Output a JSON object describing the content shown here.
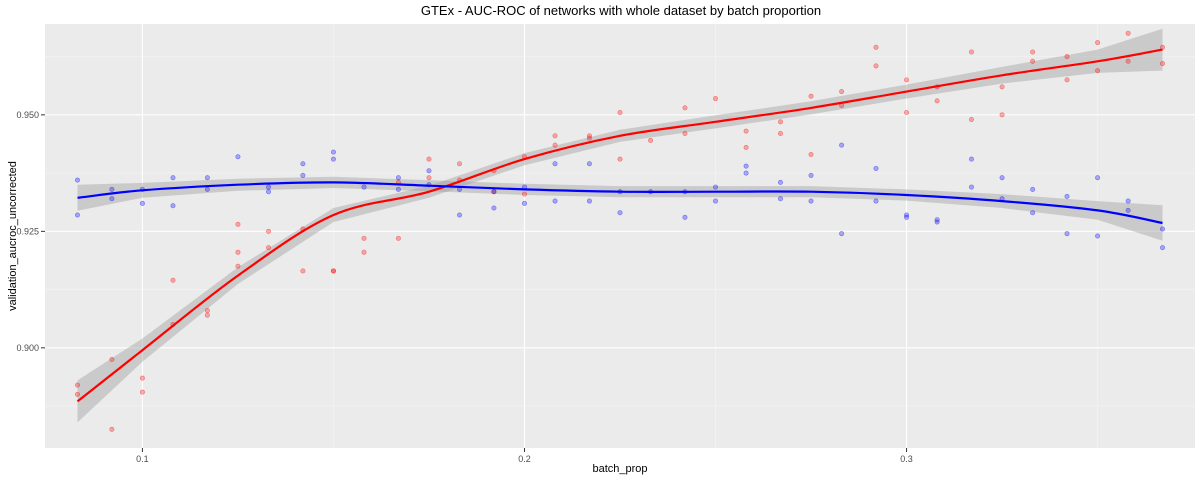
{
  "chart_data": {
    "type": "scatter",
    "title": "GTEx - AUC-ROC of networks with whole dataset by batch proportion",
    "xlabel": "batch_prop",
    "ylabel": "validation_aucroc_uncorrected",
    "xlim": [
      0.0745,
      0.3755
    ],
    "ylim": [
      0.8785,
      0.9695
    ],
    "x_ticks": [
      0.1,
      0.2,
      0.3
    ],
    "x_tick_labels": [
      "0.1",
      "0.2",
      "0.3"
    ],
    "y_ticks": [
      0.9,
      0.925,
      0.95
    ],
    "y_tick_labels": [
      "0.900",
      "0.925",
      "0.950"
    ],
    "grid": true,
    "legend": "none",
    "background_color": "#ebebeb",
    "series": [
      {
        "color": "#ff0000",
        "points": [
          [
            0.083,
            0.892
          ],
          [
            0.083,
            0.89
          ],
          [
            0.092,
            0.8975
          ],
          [
            0.092,
            0.8825
          ],
          [
            0.1,
            0.8935
          ],
          [
            0.1,
            0.8905
          ],
          [
            0.108,
            0.9145
          ],
          [
            0.108,
            0.905
          ],
          [
            0.117,
            0.907
          ],
          [
            0.117,
            0.908
          ],
          [
            0.125,
            0.9265
          ],
          [
            0.125,
            0.9205
          ],
          [
            0.125,
            0.9175
          ],
          [
            0.133,
            0.925
          ],
          [
            0.133,
            0.9215
          ],
          [
            0.142,
            0.9255
          ],
          [
            0.142,
            0.9165
          ],
          [
            0.15,
            0.9165
          ],
          [
            0.15,
            0.9165
          ],
          [
            0.158,
            0.9235
          ],
          [
            0.158,
            0.9205
          ],
          [
            0.167,
            0.9235
          ],
          [
            0.167,
            0.9355
          ],
          [
            0.175,
            0.9405
          ],
          [
            0.175,
            0.9365
          ],
          [
            0.183,
            0.9395
          ],
          [
            0.183,
            0.936
          ],
          [
            0.192,
            0.938
          ],
          [
            0.192,
            0.9335
          ],
          [
            0.2,
            0.941
          ],
          [
            0.2,
            0.933
          ],
          [
            0.208,
            0.9455
          ],
          [
            0.208,
            0.9435
          ],
          [
            0.217,
            0.9455
          ],
          [
            0.217,
            0.945
          ],
          [
            0.225,
            0.9505
          ],
          [
            0.225,
            0.9405
          ],
          [
            0.233,
            0.9445
          ],
          [
            0.242,
            0.9515
          ],
          [
            0.242,
            0.946
          ],
          [
            0.25,
            0.9535
          ],
          [
            0.258,
            0.9465
          ],
          [
            0.258,
            0.943
          ],
          [
            0.267,
            0.9485
          ],
          [
            0.267,
            0.946
          ],
          [
            0.275,
            0.954
          ],
          [
            0.275,
            0.9415
          ],
          [
            0.283,
            0.955
          ],
          [
            0.283,
            0.952
          ],
          [
            0.292,
            0.9645
          ],
          [
            0.292,
            0.9605
          ],
          [
            0.3,
            0.9575
          ],
          [
            0.3,
            0.9505
          ],
          [
            0.308,
            0.956
          ],
          [
            0.308,
            0.953
          ],
          [
            0.317,
            0.9635
          ],
          [
            0.317,
            0.949
          ],
          [
            0.325,
            0.956
          ],
          [
            0.325,
            0.95
          ],
          [
            0.333,
            0.9635
          ],
          [
            0.333,
            0.9615
          ],
          [
            0.342,
            0.9625
          ],
          [
            0.342,
            0.9575
          ],
          [
            0.35,
            0.9655
          ],
          [
            0.35,
            0.9595
          ],
          [
            0.358,
            0.9675
          ],
          [
            0.358,
            0.9615
          ],
          [
            0.367,
            0.9645
          ],
          [
            0.367,
            0.961
          ]
        ]
      },
      {
        "color": "#0000ff",
        "points": [
          [
            0.083,
            0.936
          ],
          [
            0.083,
            0.9285
          ],
          [
            0.092,
            0.934
          ],
          [
            0.092,
            0.932
          ],
          [
            0.1,
            0.934
          ],
          [
            0.1,
            0.931
          ],
          [
            0.108,
            0.9365
          ],
          [
            0.108,
            0.9305
          ],
          [
            0.117,
            0.9365
          ],
          [
            0.117,
            0.934
          ],
          [
            0.125,
            0.941
          ],
          [
            0.133,
            0.9345
          ],
          [
            0.133,
            0.9335
          ],
          [
            0.142,
            0.9395
          ],
          [
            0.142,
            0.937
          ],
          [
            0.15,
            0.942
          ],
          [
            0.15,
            0.9405
          ],
          [
            0.158,
            0.9345
          ],
          [
            0.167,
            0.9365
          ],
          [
            0.167,
            0.934
          ],
          [
            0.175,
            0.938
          ],
          [
            0.175,
            0.935
          ],
          [
            0.183,
            0.934
          ],
          [
            0.183,
            0.9285
          ],
          [
            0.192,
            0.9335
          ],
          [
            0.192,
            0.93
          ],
          [
            0.2,
            0.9345
          ],
          [
            0.2,
            0.931
          ],
          [
            0.208,
            0.9315
          ],
          [
            0.208,
            0.9395
          ],
          [
            0.217,
            0.9395
          ],
          [
            0.217,
            0.9315
          ],
          [
            0.225,
            0.9335
          ],
          [
            0.225,
            0.929
          ],
          [
            0.233,
            0.9335
          ],
          [
            0.242,
            0.9335
          ],
          [
            0.242,
            0.928
          ],
          [
            0.25,
            0.9345
          ],
          [
            0.25,
            0.9315
          ],
          [
            0.258,
            0.939
          ],
          [
            0.258,
            0.9375
          ],
          [
            0.267,
            0.9355
          ],
          [
            0.267,
            0.932
          ],
          [
            0.275,
            0.937
          ],
          [
            0.275,
            0.9315
          ],
          [
            0.283,
            0.9435
          ],
          [
            0.283,
            0.9245
          ],
          [
            0.292,
            0.9385
          ],
          [
            0.292,
            0.9315
          ],
          [
            0.3,
            0.9285
          ],
          [
            0.3,
            0.928
          ],
          [
            0.308,
            0.9275
          ],
          [
            0.308,
            0.927
          ],
          [
            0.317,
            0.9405
          ],
          [
            0.317,
            0.9345
          ],
          [
            0.325,
            0.9365
          ],
          [
            0.325,
            0.932
          ],
          [
            0.333,
            0.934
          ],
          [
            0.333,
            0.929
          ],
          [
            0.342,
            0.9325
          ],
          [
            0.342,
            0.9245
          ],
          [
            0.35,
            0.9365
          ],
          [
            0.35,
            0.924
          ],
          [
            0.358,
            0.9315
          ],
          [
            0.358,
            0.9295
          ],
          [
            0.367,
            0.9255
          ],
          [
            0.367,
            0.9215
          ]
        ]
      }
    ],
    "smooth_lines": [
      {
        "color": "#ff0000",
        "points": [
          [
            0.083,
            0.8885
          ],
          [
            0.1,
            0.8995
          ],
          [
            0.125,
            0.9155
          ],
          [
            0.15,
            0.9285
          ],
          [
            0.175,
            0.9335
          ],
          [
            0.2,
            0.9405
          ],
          [
            0.225,
            0.9455
          ],
          [
            0.25,
            0.9485
          ],
          [
            0.275,
            0.9515
          ],
          [
            0.3,
            0.955
          ],
          [
            0.325,
            0.9585
          ],
          [
            0.35,
            0.9615
          ],
          [
            0.367,
            0.964
          ]
        ],
        "band_halfwidth": [
          0.0045,
          0.0025,
          0.0018,
          0.0015,
          0.0013,
          0.0013,
          0.0013,
          0.0014,
          0.0014,
          0.0015,
          0.0018,
          0.0025,
          0.0045
        ]
      },
      {
        "color": "#0000ff",
        "points": [
          [
            0.083,
            0.9322
          ],
          [
            0.1,
            0.9338
          ],
          [
            0.125,
            0.935
          ],
          [
            0.15,
            0.9355
          ],
          [
            0.175,
            0.9348
          ],
          [
            0.2,
            0.934
          ],
          [
            0.225,
            0.9335
          ],
          [
            0.25,
            0.9335
          ],
          [
            0.275,
            0.9335
          ],
          [
            0.3,
            0.9328
          ],
          [
            0.325,
            0.9315
          ],
          [
            0.35,
            0.9295
          ],
          [
            0.367,
            0.9268
          ]
        ],
        "band_halfwidth": [
          0.0028,
          0.0016,
          0.0013,
          0.0012,
          0.0012,
          0.0012,
          0.0012,
          0.0012,
          0.0012,
          0.0012,
          0.0015,
          0.002,
          0.0038
        ]
      }
    ]
  }
}
